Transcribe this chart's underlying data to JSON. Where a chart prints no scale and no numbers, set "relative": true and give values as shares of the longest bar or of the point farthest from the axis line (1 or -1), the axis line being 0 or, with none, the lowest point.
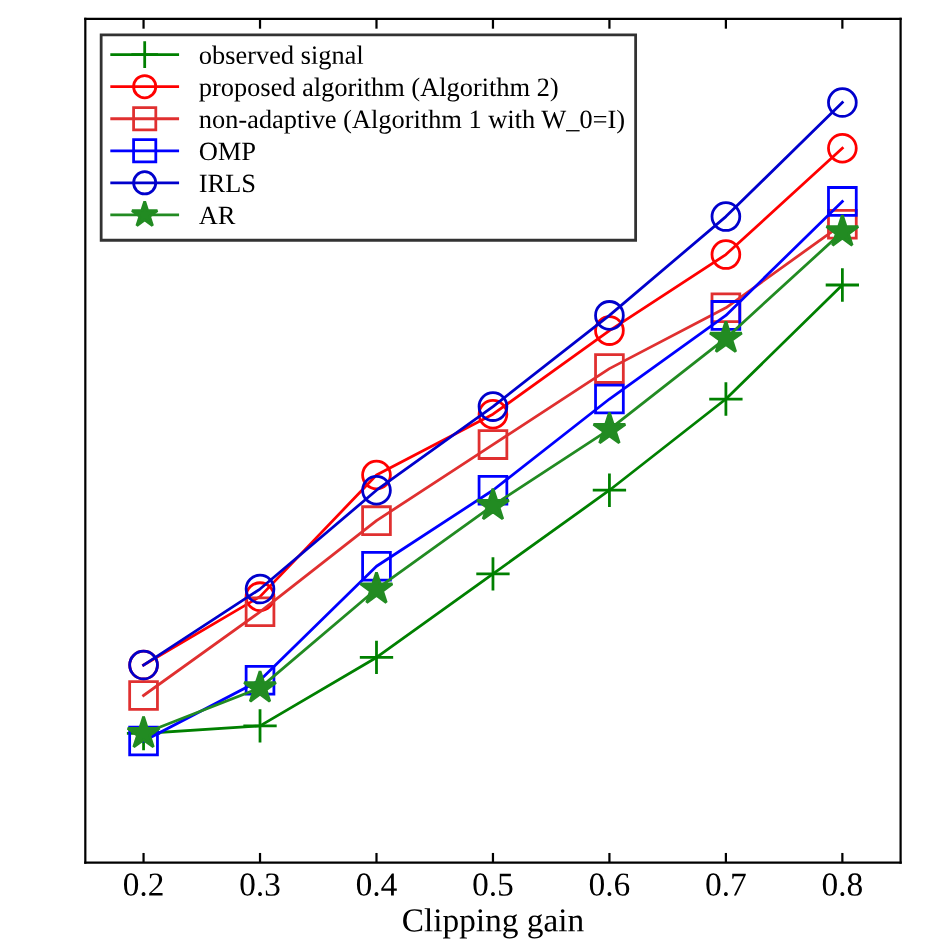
{
  "chart_data": {
    "type": "line",
    "xlabel": "Clipping gain",
    "relative": true,
    "tick_labels": "x",
    "x": [
      0.2,
      0.3,
      0.4,
      0.5,
      0.6,
      0.7,
      0.8
    ],
    "xlim": [
      0.15,
      0.85
    ],
    "xticks": [
      0.2,
      0.3,
      0.4,
      0.5,
      0.6,
      0.7,
      0.8
    ],
    "legend": "top left",
    "line_style": "solid",
    "series": [
      {
        "name": "observed signal",
        "color": "#008000",
        "marker": "cross",
        "values": [
          0.17,
          0.18,
          0.27,
          0.38,
          0.49,
          0.61,
          0.76
        ]
      },
      {
        "name": "proposed algorithm (Algorithm 2)",
        "color": "#ff0000",
        "marker": "circle",
        "values": [
          0.26,
          0.35,
          0.51,
          0.59,
          0.7,
          0.8,
          0.94
        ]
      },
      {
        "name": "non-adaptive (Algorithm 1 with W_0=I)",
        "color": "#e03030",
        "marker": "square",
        "values": [
          0.22,
          0.33,
          0.45,
          0.55,
          0.65,
          0.73,
          0.84
        ]
      },
      {
        "name": "OMP",
        "color": "#0000ff",
        "marker": "square",
        "values": [
          0.16,
          0.24,
          0.39,
          0.49,
          0.61,
          0.72,
          0.87
        ]
      },
      {
        "name": "IRLS",
        "color": "#0000cc",
        "marker": "circle",
        "values": [
          0.26,
          0.36,
          0.49,
          0.6,
          0.72,
          0.85,
          1.0
        ]
      },
      {
        "name": "AR",
        "color": "#228b22",
        "marker": "star",
        "values": [
          0.17,
          0.23,
          0.36,
          0.47,
          0.57,
          0.69,
          0.83
        ]
      }
    ]
  }
}
